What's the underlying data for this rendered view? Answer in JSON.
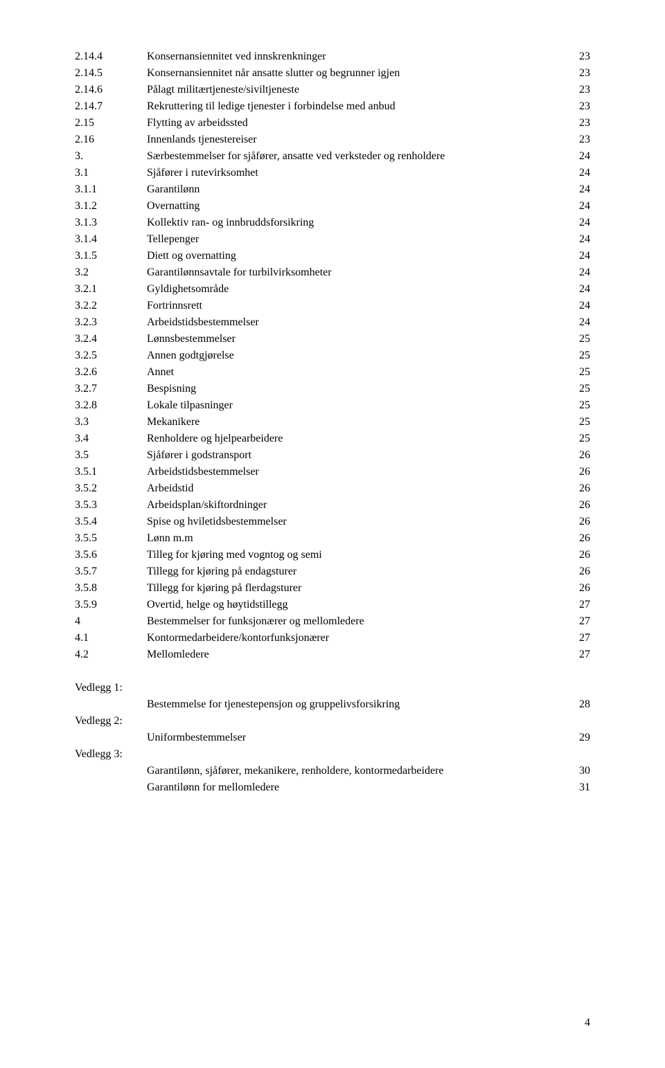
{
  "toc": [
    {
      "num": "2.14.4",
      "title": "Konsernansiennitet ved innskrenkninger",
      "page": "23"
    },
    {
      "num": "2.14.5",
      "title": "Konsernansiennitet når ansatte slutter og begrunner igjen",
      "page": "23"
    },
    {
      "num": "2.14.6",
      "title": "Pålagt militærtjeneste/siviltjeneste",
      "page": "23"
    },
    {
      "num": "2.14.7",
      "title": "Rekruttering til ledige tjenester i forbindelse med anbud",
      "page": "23"
    },
    {
      "num": "2.15",
      "title": "Flytting av arbeidssted",
      "page": "23"
    },
    {
      "num": "2.16",
      "title": "Innenlands tjenestereiser",
      "page": "23"
    },
    {
      "num": "3.",
      "title": "Særbestemmelser for sjåfører, ansatte ved verksteder og renholdere",
      "page": "24"
    },
    {
      "num": "3.1",
      "title": "Sjåfører i rutevirksomhet",
      "page": "24"
    },
    {
      "num": "3.1.1",
      "title": "Garantilønn",
      "page": "24"
    },
    {
      "num": "3.1.2",
      "title": "Overnatting",
      "page": "24"
    },
    {
      "num": "3.1.3",
      "title": "Kollektiv ran- og innbruddsforsikring",
      "page": "24"
    },
    {
      "num": "3.1.4",
      "title": "Tellepenger",
      "page": "24"
    },
    {
      "num": "3.1.5",
      "title": "Diett og overnatting",
      "page": "24"
    },
    {
      "num": "3.2",
      "title": "Garantilønnsavtale for turbilvirksomheter",
      "page": "24"
    },
    {
      "num": "3.2.1",
      "title": "Gyldighetsområde",
      "page": "24"
    },
    {
      "num": "3.2.2",
      "title": "Fortrinnsrett",
      "page": "24"
    },
    {
      "num": "3.2.3",
      "title": "Arbeidstidsbestemmelser",
      "page": "24"
    },
    {
      "num": "3.2.4",
      "title": "Lønnsbestemmelser",
      "page": "25"
    },
    {
      "num": "3.2.5",
      "title": "Annen godtgjørelse",
      "page": "25"
    },
    {
      "num": "3.2.6",
      "title": "Annet",
      "page": "25"
    },
    {
      "num": "3.2.7",
      "title": "Bespisning",
      "page": "25"
    },
    {
      "num": "3.2.8",
      "title": "Lokale tilpasninger",
      "page": "25"
    },
    {
      "num": "3.3",
      "title": "Mekanikere",
      "page": "25"
    },
    {
      "num": "3.4",
      "title": "Renholdere og hjelpearbeidere",
      "page": "25"
    },
    {
      "num": "3.5",
      "title": "Sjåfører i godstransport",
      "page": "26"
    },
    {
      "num": "3.5.1",
      "title": "Arbeidstidsbestemmelser",
      "page": "26"
    },
    {
      "num": "3.5.2",
      "title": "Arbeidstid",
      "page": "26"
    },
    {
      "num": "3.5.3",
      "title": "Arbeidsplan/skiftordninger",
      "page": "26"
    },
    {
      "num": "3.5.4",
      "title": "Spise og hviletidsbestemmelser",
      "page": "26"
    },
    {
      "num": "3.5.5",
      "title": "Lønn m.m",
      "page": "26"
    },
    {
      "num": "3.5.6",
      "title": "Tilleg for kjøring med vogntog og semi",
      "page": "26"
    },
    {
      "num": "3.5.7",
      "title": "Tillegg for kjøring på endagsturer",
      "page": "26"
    },
    {
      "num": "3.5.8",
      "title": "Tillegg for kjøring på flerdagsturer",
      "page": "26"
    },
    {
      "num": "3.5.9",
      "title": "Overtid, helge og høytidstillegg",
      "page": "27"
    },
    {
      "num": "4",
      "title": "Bestemmelser for funksjonærer og mellomledere",
      "page": "27"
    },
    {
      "num": "4.1",
      "title": "Kontormedarbeidere/kontorfunksjonærer",
      "page": "27"
    },
    {
      "num": "4.2",
      "title": "Mellomledere",
      "page": "27"
    }
  ],
  "vedlegg": [
    {
      "head": "Vedlegg 1:",
      "lines": [
        {
          "title": "Bestemmelse for tjenestepensjon og gruppelivsforsikring",
          "page": "28"
        }
      ]
    },
    {
      "head": "Vedlegg 2:",
      "lines": [
        {
          "title": "Uniformbestemmelser",
          "page": "29"
        }
      ]
    },
    {
      "head": "Vedlegg 3:",
      "lines": [
        {
          "title": "Garantilønn, sjåfører, mekanikere, renholdere, kontormedarbeidere",
          "page": "30"
        },
        {
          "title": "Garantilønn for mellomledere",
          "page": "31"
        }
      ]
    }
  ],
  "footer_page": "4"
}
